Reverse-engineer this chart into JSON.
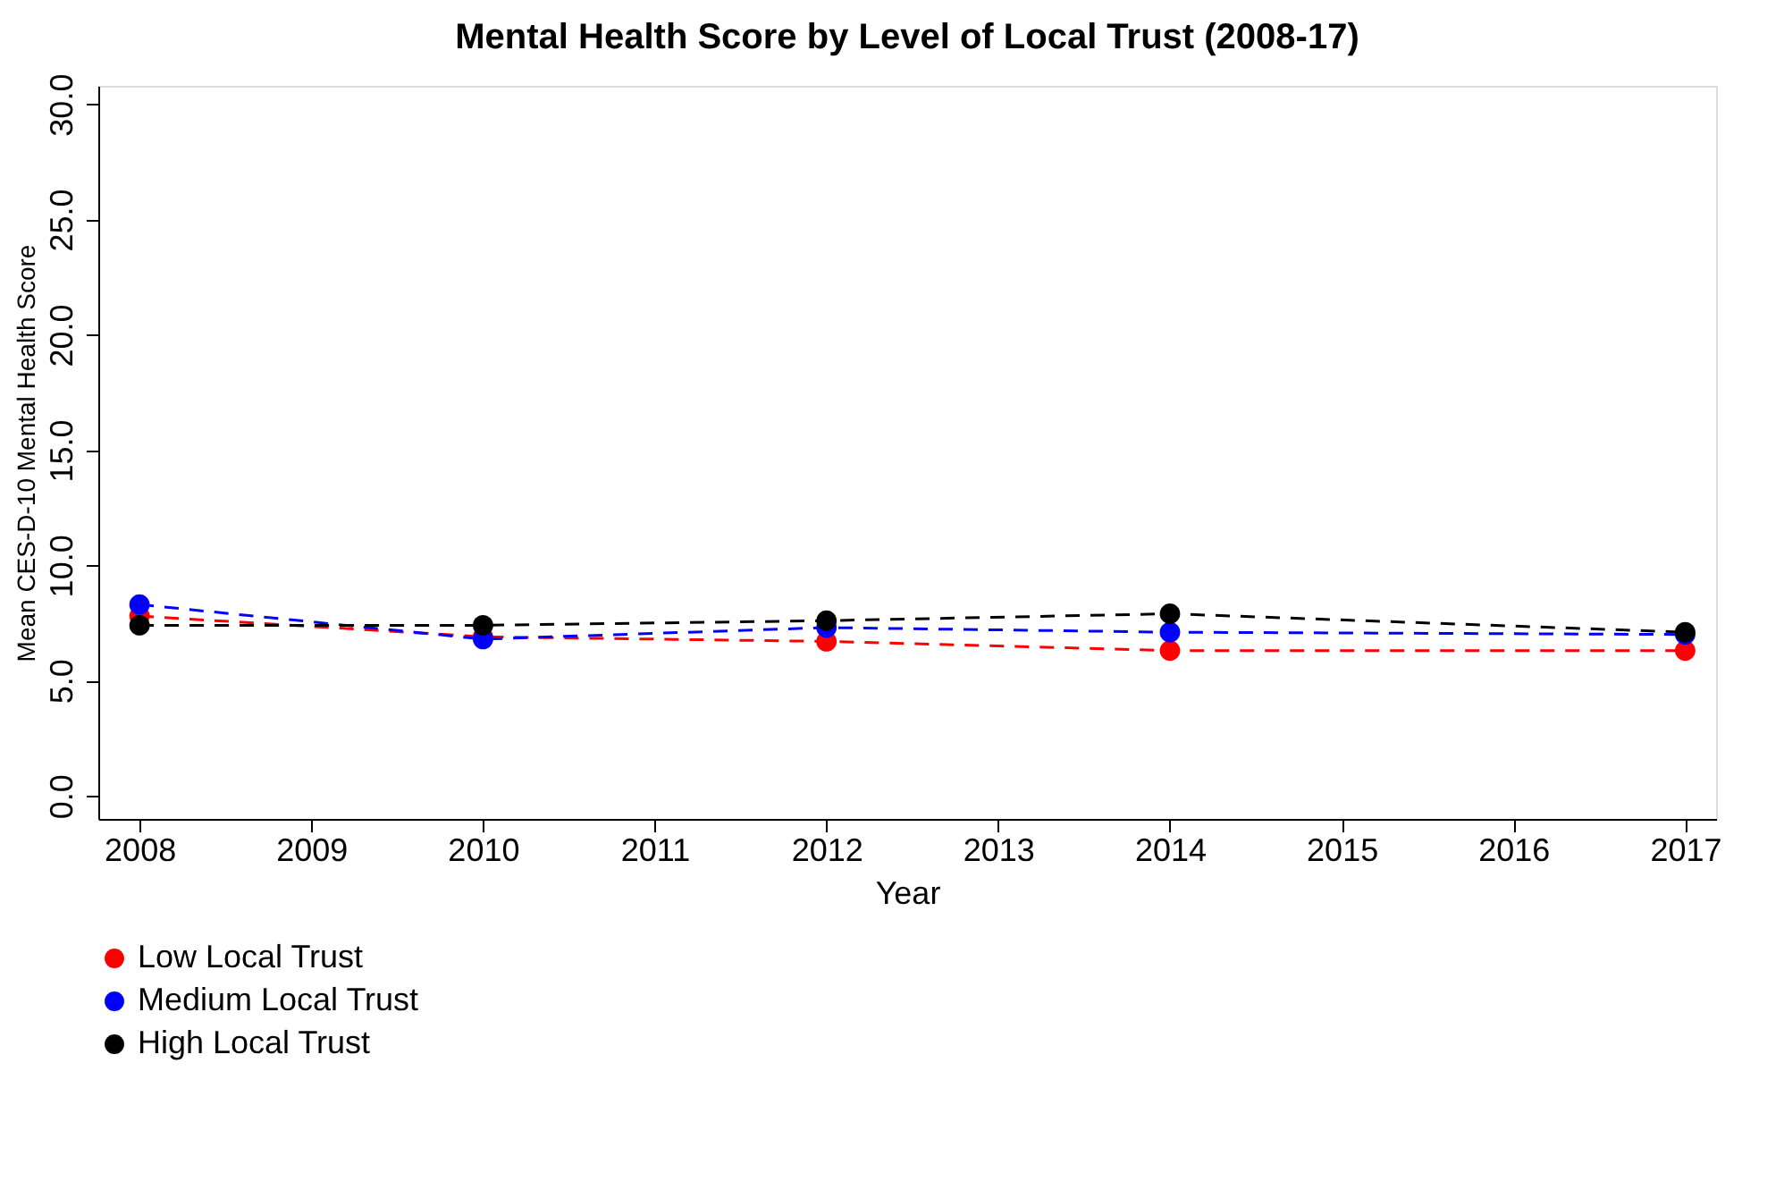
{
  "chart_data": {
    "type": "line",
    "title": "Mental Health Score by Level of Local Trust (2008-17)",
    "xlabel": "Year",
    "ylabel": "Mean CES-D-10 Mental Health Score",
    "x": [
      2008,
      2010,
      2012,
      2014,
      2017
    ],
    "series": [
      {
        "name": "Low Local Trust",
        "color": "#ff0000",
        "values": [
          7.8,
          6.9,
          6.7,
          6.3,
          6.3
        ]
      },
      {
        "name": "Medium Local Trust",
        "color": "#0000ff",
        "values": [
          8.3,
          6.8,
          7.3,
          7.1,
          7.0
        ]
      },
      {
        "name": "High Local Trust",
        "color": "#000000",
        "values": [
          7.4,
          7.4,
          7.6,
          7.9,
          7.1
        ]
      }
    ],
    "xlim": [
      2007.76,
      2017.18
    ],
    "xticks": [
      2008,
      2009,
      2010,
      2011,
      2012,
      2013,
      2014,
      2015,
      2016,
      2017
    ],
    "ylim": [
      -1.0,
      30.8
    ],
    "yticks": [
      {
        "value": 0,
        "label": "0.0"
      },
      {
        "value": 5,
        "label": "5.0"
      },
      {
        "value": 10,
        "label": "10.0"
      },
      {
        "value": 15,
        "label": "15.0"
      },
      {
        "value": 20,
        "label": "20.0"
      },
      {
        "value": 25,
        "label": "25.0"
      },
      {
        "value": 30,
        "label": "30.0"
      }
    ],
    "grid": false,
    "legend": "bottom",
    "marker": "circle",
    "line_style": "dashed"
  }
}
